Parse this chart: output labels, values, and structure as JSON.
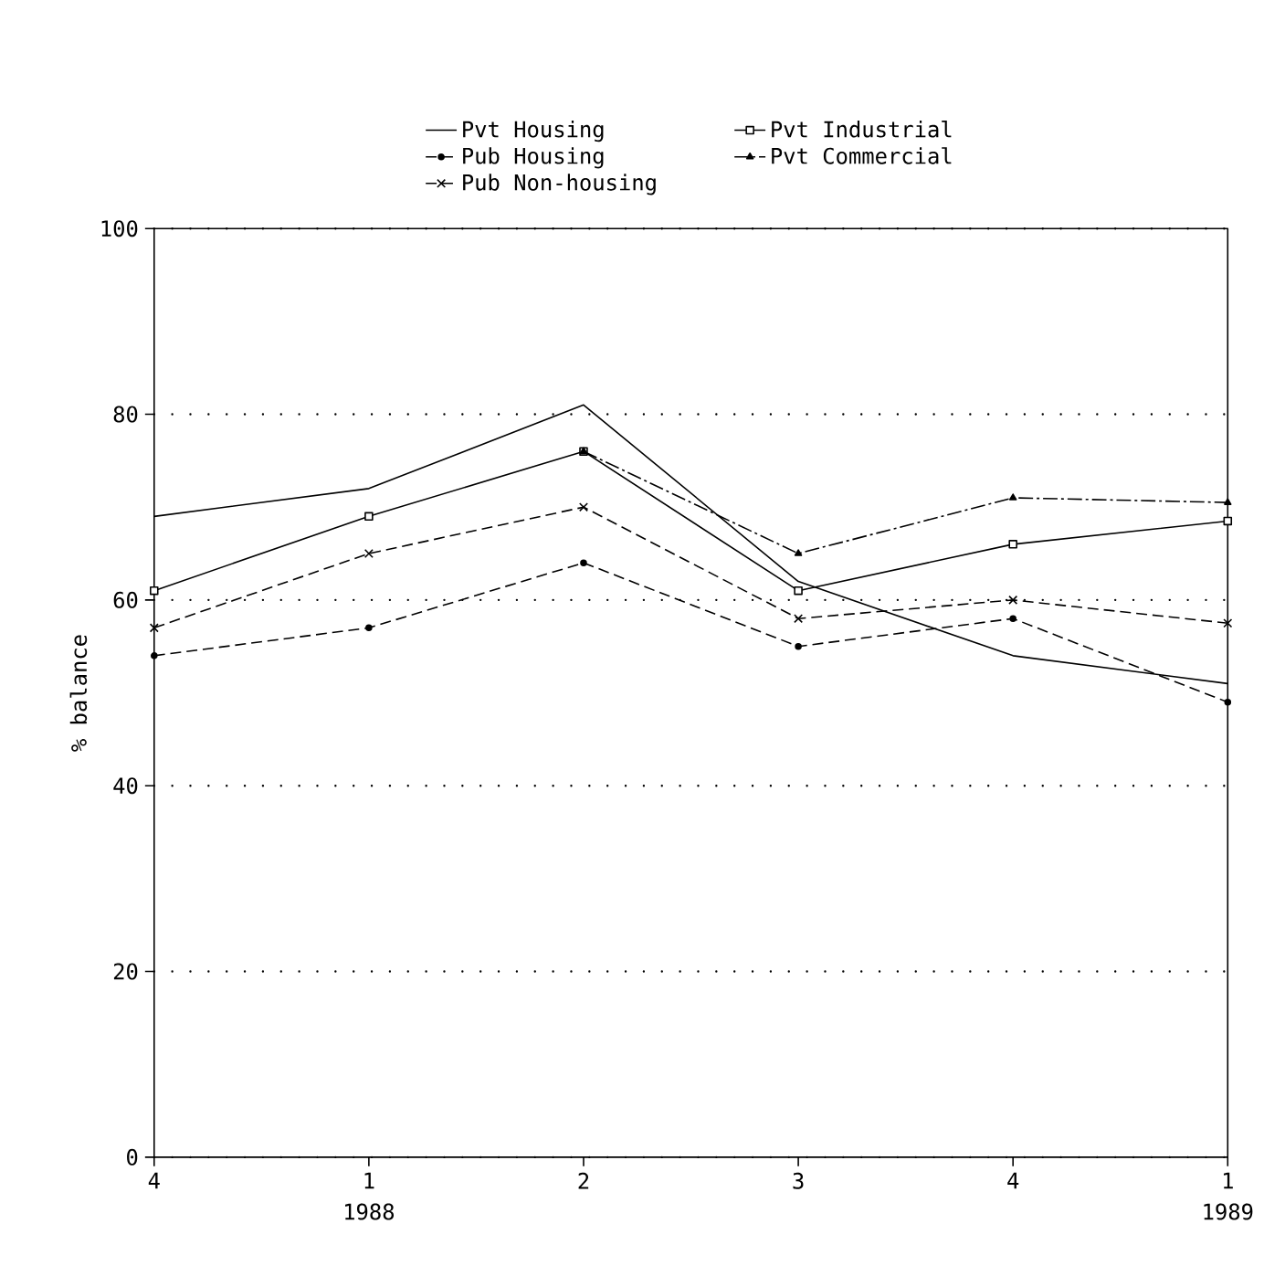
{
  "chart_data": {
    "type": "line",
    "ylabel": "% balance",
    "categories": [
      "4",
      "1",
      "2",
      "3",
      "4",
      "1"
    ],
    "annotations": [
      "1988",
      "1989"
    ],
    "series": [
      {
        "name": "Pvt Housing",
        "color": "#000000",
        "values": [
          69,
          72,
          81,
          62,
          54,
          51
        ],
        "marker": "none",
        "line_style": "solid"
      },
      {
        "name": "Pvt Industrial",
        "color": "#000000",
        "values": [
          61,
          69,
          76,
          61,
          66,
          68.5
        ],
        "marker": "square",
        "line_style": "solid"
      },
      {
        "name": "Pub Housing",
        "color": "#000000",
        "values": [
          54,
          57,
          64,
          55,
          58,
          49
        ],
        "marker": "circle",
        "line_style": "dashed"
      },
      {
        "name": "Pvt Commercial",
        "color": "#000000",
        "values": [
          null,
          null,
          76,
          65,
          71,
          70.5
        ],
        "marker": "triangle",
        "line_style": "dashdot"
      },
      {
        "name": "Pub Non-housing",
        "color": "#000000",
        "values": [
          57,
          65,
          70,
          58,
          60,
          57.5
        ],
        "marker": "cross",
        "line_style": "dashed"
      }
    ],
    "ylim": [
      0,
      100
    ],
    "yticks": [
      0,
      20,
      40,
      60,
      80,
      100
    ],
    "grid": "y",
    "legend": "top"
  }
}
